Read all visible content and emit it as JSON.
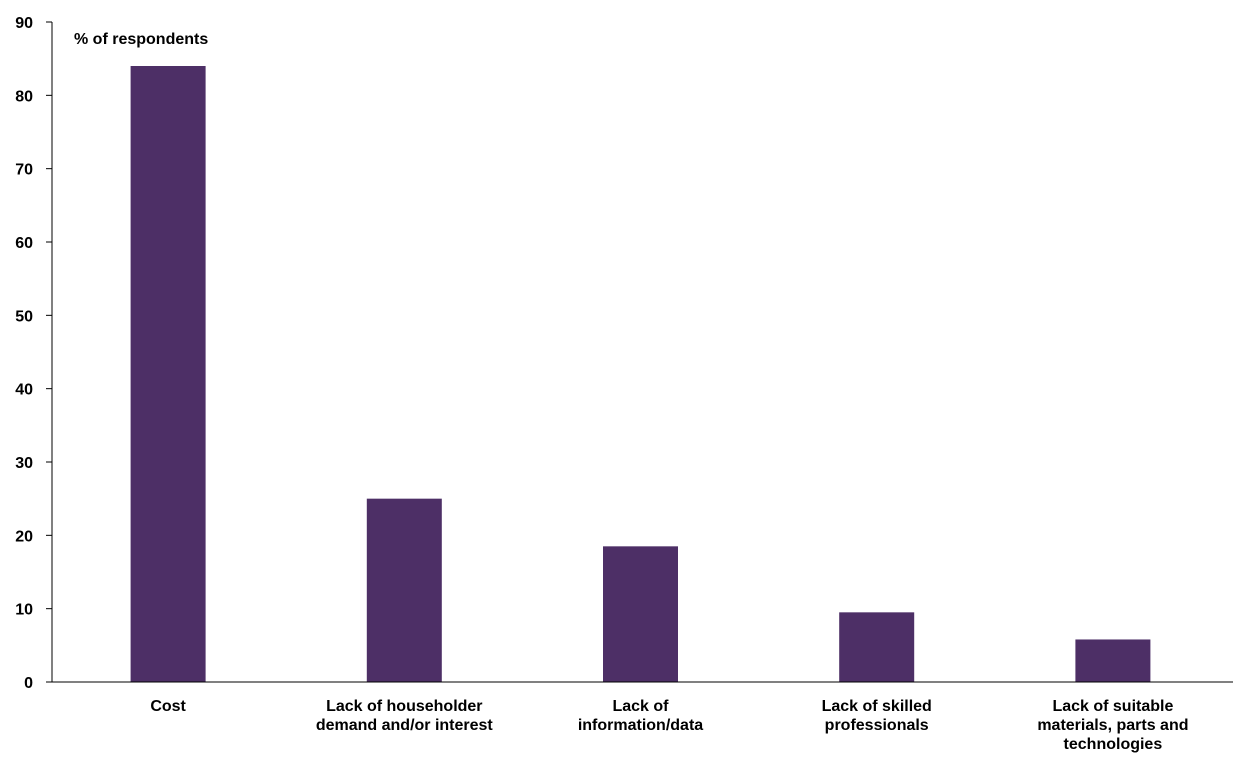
{
  "chart_data": {
    "type": "bar",
    "ylabel": "% of respondents",
    "categories": [
      [
        "Cost"
      ],
      [
        "Lack of householder",
        "demand and/or interest"
      ],
      [
        "Lack of",
        "information/data"
      ],
      [
        "Lack of skilled",
        "professionals"
      ],
      [
        "Lack of suitable",
        "materials, parts and",
        "technologies"
      ]
    ],
    "values": [
      84,
      25,
      18.5,
      9.5,
      5.8
    ],
    "ylim": [
      0,
      90
    ],
    "yticks": [
      0,
      10,
      20,
      30,
      40,
      50,
      60,
      70,
      80,
      90
    ],
    "grid": false,
    "legend": "none",
    "bar_color": "#4d2f66",
    "axis_color": "#000000"
  }
}
